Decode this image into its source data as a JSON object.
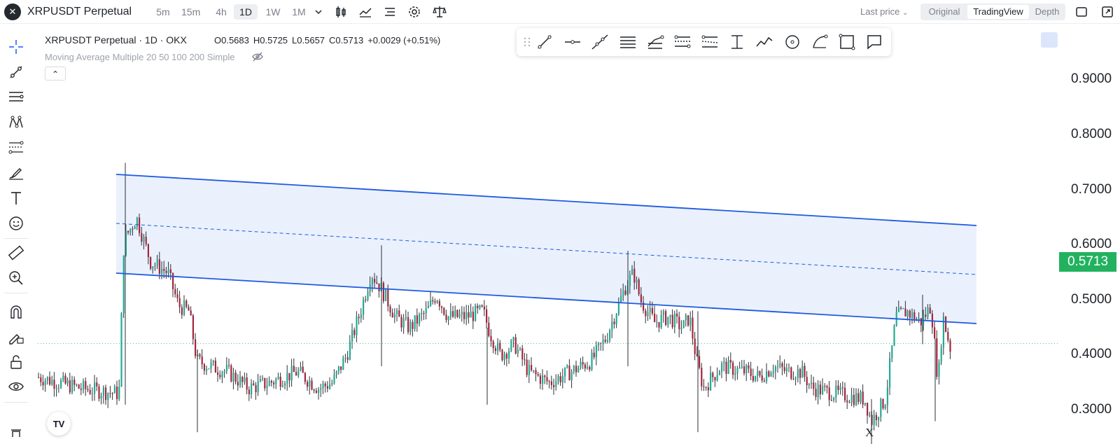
{
  "header": {
    "logo_glyph": "✕",
    "symbol": "XRPUSDT Perpetual",
    "timeframes": [
      "5m",
      "15m",
      "4h",
      "1D",
      "1W",
      "1M"
    ],
    "active_timeframe": "1D",
    "icons": [
      "chevron-down-icon",
      "candles-icon",
      "indicators-icon",
      "layout-icon",
      "settings-icon",
      "compare-icon"
    ],
    "last_price_label": "Last price",
    "views": [
      "Original",
      "TradingView",
      "Depth"
    ],
    "active_view": "TradingView",
    "window_icons": [
      "fullscreen-icon",
      "popout-icon"
    ]
  },
  "left_toolbar": {
    "icons": [
      "crosshair-icon",
      "trendline-icon",
      "horizontal-lines-icon",
      "pattern-icon",
      "fib-icon",
      "brush-icon",
      "text-icon",
      "emoji-icon",
      "ruler-icon",
      "zoom-in-icon",
      "magnet-icon",
      "lock-drawing-icon",
      "unlock-icon",
      "eye-icon",
      "trash-icon"
    ]
  },
  "legend": {
    "title": "XRPUSDT Perpetual · 1D · OKX",
    "open": "O0.5683",
    "high": "H0.5725",
    "low": "L0.5657",
    "close": "C0.5713",
    "change": "+0.0029 (+0.51%)",
    "indicator": "Moving Average Multiple 20 50 100 200 Simple",
    "collapse_glyph": "⌃"
  },
  "drawing_toolbar": {
    "icons": [
      "drag-handle-icon",
      "trend-line-icon",
      "horizontal-ray-icon",
      "extended-line-icon",
      "parallel-channel-icon",
      "regression-trend-icon",
      "flat-top-bottom-icon",
      "disjoint-channel-icon",
      "price-range-icon",
      "path-icon",
      "circle-icon",
      "arc-icon",
      "rectangle-icon",
      "callout-icon"
    ]
  },
  "price_scale": {
    "ticks": [
      "0.9000",
      "0.8000",
      "0.7000",
      "0.6000",
      "0.5000",
      "0.4000",
      "0.3000"
    ],
    "last_price": "0.5713",
    "last_price_color": "#22b25f"
  },
  "colors": {
    "up": "#22ab94",
    "down": "#a3263b",
    "channel": "#1f5ae0",
    "channel_fill": "#eaf1fd"
  },
  "footer": {
    "tv_logo": "TV",
    "x_mark": "X"
  }
}
